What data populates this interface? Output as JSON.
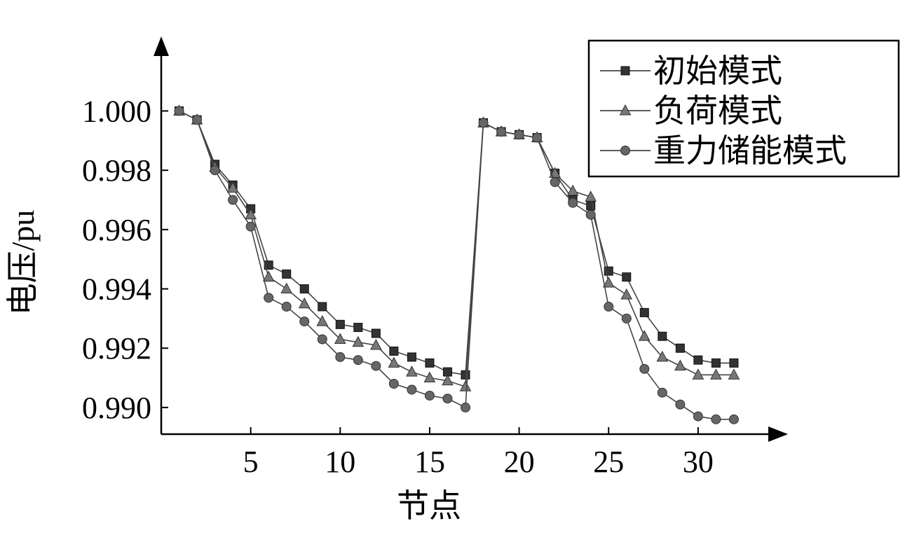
{
  "chart_data": {
    "type": "line",
    "xlabel": "节点",
    "ylabel": "电压/pu",
    "xlim": [
      0,
      34
    ],
    "ylim": [
      0.9891,
      1.0019
    ],
    "x_ticks": [
      5,
      10,
      15,
      20,
      25,
      30
    ],
    "x_tick_labels": [
      "5",
      "10",
      "15",
      "20",
      "25",
      "30"
    ],
    "y_ticks": [
      0.99,
      0.992,
      0.994,
      0.996,
      0.998,
      1.0
    ],
    "y_tick_labels": [
      "0.990",
      "0.992",
      "0.994",
      "0.996",
      "0.998",
      "1.000"
    ],
    "grid": false,
    "legend_position": "top-right",
    "x": [
      1,
      2,
      3,
      4,
      5,
      6,
      7,
      8,
      9,
      10,
      11,
      12,
      13,
      14,
      15,
      16,
      17,
      18,
      19,
      20,
      21,
      22,
      23,
      24,
      25,
      26,
      27,
      28,
      29,
      30,
      31,
      32,
      33
    ],
    "series": [
      {
        "name": "初始模式",
        "marker": "square",
        "color": "#333333",
        "values": [
          1.0,
          0.9997,
          0.9982,
          0.9975,
          0.9967,
          0.9948,
          0.9945,
          0.994,
          0.9934,
          0.9928,
          0.9927,
          0.9925,
          0.9919,
          0.9917,
          0.9915,
          0.9912,
          0.9911,
          0.9996,
          0.9993,
          0.9992,
          0.9991,
          0.9979,
          0.997,
          0.9968,
          0.9946,
          0.9944,
          0.9932,
          0.9924,
          0.992,
          0.9916,
          0.9915,
          0.9915,
          null
        ]
      },
      {
        "name": "负荷模式",
        "marker": "triangle",
        "color": "#777777",
        "values": [
          1.0,
          0.9997,
          0.9981,
          0.9974,
          0.9965,
          0.9944,
          0.994,
          0.9935,
          0.9929,
          0.9923,
          0.9922,
          0.9921,
          0.9915,
          0.9912,
          0.991,
          0.9909,
          0.9907,
          0.9996,
          0.9993,
          0.9992,
          0.9991,
          0.9979,
          0.9973,
          0.9971,
          0.9942,
          0.9938,
          0.9924,
          0.9917,
          0.9914,
          0.9911,
          0.9911,
          0.9911,
          null
        ]
      },
      {
        "name": "重力储能模式",
        "marker": "circle",
        "color": "#666666",
        "values": [
          1.0,
          0.9997,
          0.998,
          0.997,
          0.9961,
          0.9937,
          0.9934,
          0.9929,
          0.9923,
          0.9917,
          0.9916,
          0.9914,
          0.9908,
          0.9906,
          0.9904,
          0.9903,
          0.99,
          0.9996,
          0.9993,
          0.9992,
          0.9991,
          0.9976,
          0.9969,
          0.9965,
          0.9934,
          0.993,
          0.9913,
          0.9905,
          0.9901,
          0.9897,
          0.9896,
          0.9896,
          null
        ]
      }
    ]
  }
}
